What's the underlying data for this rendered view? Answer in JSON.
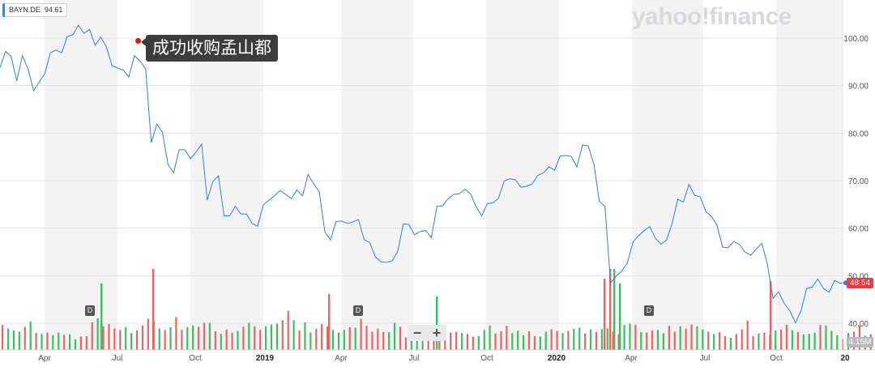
{
  "ticker": {
    "symbol": "BAYN.DE",
    "value": "94.61"
  },
  "watermark": "yahoo!finance",
  "annotation": {
    "text": "成功收购孟山都"
  },
  "last_price_label": "48.54",
  "volume_label": "4.15M",
  "dividend_label": "D",
  "zoom": {
    "minus": "−",
    "plus": "+"
  },
  "colors": {
    "line": "#2e7fde",
    "up": "#37c160",
    "down": "#f06262",
    "price_tag": "#ff333a",
    "shade": "#f3f3f3"
  },
  "chart_data": {
    "type": "line",
    "series": [
      {
        "values": [
          93.8,
          97.2,
          96.1,
          91.0,
          96.3,
          93.5,
          88.9,
          90.8,
          92.5,
          96.9,
          97.5,
          96.9,
          100.3,
          100.7,
          102.7,
          101.0,
          101.8,
          98.5,
          100.2,
          98.1,
          94.2,
          93.7,
          93.3,
          91.8,
          96.3,
          95.2,
          93.5,
          78.0,
          81.9,
          80.2,
          73.4,
          71.7,
          76.5,
          76.5,
          74.6,
          76.0,
          77.7,
          65.9,
          69.8,
          71.0,
          62.6,
          62.6,
          64.6,
          63.0,
          63.0,
          61.0,
          60.4,
          64.9,
          65.9,
          66.8,
          67.9,
          67.1,
          66.2,
          68.0,
          66.8,
          71.3,
          69.3,
          67.6,
          59.2,
          57.5,
          61.4,
          61.5,
          61.0,
          61.3,
          61.8,
          57.6,
          57.0,
          54.0,
          52.9,
          52.8,
          53.1,
          55.1,
          60.9,
          60.8,
          58.6,
          59.3,
          59.5,
          58.0,
          64.6,
          64.7,
          66.2,
          67.1,
          67.2,
          68.2,
          67.2,
          64.5,
          62.6,
          65.2,
          65.3,
          66.3,
          69.9,
          70.4,
          70.2,
          68.6,
          68.8,
          69.3,
          71.1,
          71.6,
          72.9,
          72.2,
          75.2,
          75.3,
          75.1,
          72.9,
          77.5,
          77.3,
          73.6,
          65.6,
          64.6,
          48.5,
          49.9,
          51.0,
          52.7,
          57.1,
          58.4,
          59.5,
          60.3,
          57.9,
          56.6,
          57.5,
          61.1,
          66.1,
          65.5,
          69.2,
          66.9,
          66.6,
          63.5,
          62.5,
          60.6,
          56.0,
          55.9,
          57.2,
          56.6,
          55.0,
          54.3,
          55.6,
          56.8,
          52.4,
          45.2,
          46.6,
          44.2,
          42.6,
          40.1,
          42.6,
          47.3,
          47.6,
          49.3,
          47.3,
          46.5,
          49.0,
          48.4,
          48.5
        ]
      },
      {
        "name": "Volume",
        "volume_values": [
          0.56,
          0.48,
          0.44,
          0.41,
          0.52,
          0.64,
          0.38,
          0.36,
          0.39,
          0.33,
          0.39,
          0.34,
          0.35,
          0.24,
          0.3,
          0.31,
          0.62,
          0.71,
          0.53,
          0.58,
          0.48,
          0.45,
          0.51,
          0.38,
          0.44,
          0.55,
          0.7,
          0.65,
          0.48,
          0.45,
          0.51,
          0.74,
          0.45,
          0.51,
          0.55,
          0.52,
          0.61,
          0.61,
          0.42,
          0.36,
          0.46,
          0.39,
          0.43,
          0.52,
          0.61,
          0.53,
          0.45,
          0.53,
          0.57,
          0.59,
          0.67,
          0.88,
          0.67,
          0.44,
          0.62,
          0.39,
          0.47,
          0.58,
          0.53,
          0.45,
          0.39,
          0.45,
          0.51,
          0.5,
          0.7,
          0.54,
          0.41,
          0.48,
          0.4,
          0.4,
          0.61,
          0.52,
          0.28,
          0.41,
          0.4,
          0.41,
          0.46,
          0.29,
          0.45,
          0.5,
          0.39,
          0.41,
          0.38,
          0.36,
          0.3,
          0.31,
          0.45,
          0.55,
          0.37,
          0.42,
          0.54,
          0.38,
          0.43,
          0.33,
          0.42,
          0.31,
          0.3,
          0.41,
          0.46,
          0.43,
          0.38,
          0.43,
          0.48,
          0.5,
          0.37,
          0.46,
          0.4,
          0.47,
          0.49,
          0.41,
          0.35,
          0.56,
          0.59,
          0.57,
          0.4,
          0.39,
          0.44,
          0.45,
          0.37,
          0.54,
          0.41,
          0.53,
          0.48,
          0.57,
          0.53,
          0.46,
          0.41,
          0.36,
          0.4,
          0.31,
          0.27,
          0.36,
          0.46,
          0.66,
          0.31,
          0.37,
          0.39,
          0.34,
          0.44,
          0.46,
          0.56,
          0.44,
          0.4,
          0.35,
          0.36,
          0.39,
          0.56,
          0.55,
          0.43,
          0.33,
          0.25,
          0.38,
          0.41,
          0.55,
          0.32,
          0.35,
          0.46,
          0.31,
          0.25
        ]
      }
    ],
    "volume_up": [
      false,
      true,
      true,
      true,
      false,
      true,
      false,
      true,
      false,
      true,
      true,
      false,
      true,
      true,
      false,
      false,
      false,
      true,
      false,
      false,
      false,
      false,
      true,
      true,
      false,
      false,
      false,
      false,
      true,
      false,
      true,
      false,
      false,
      true,
      true,
      false,
      false,
      true,
      false,
      true,
      false,
      false,
      true,
      false,
      true,
      false,
      false,
      true,
      true,
      true,
      false,
      false,
      true,
      false,
      true,
      true,
      false,
      false,
      false,
      true,
      true,
      true,
      false,
      true,
      false,
      false,
      false,
      false,
      false,
      true,
      true,
      false,
      false,
      true,
      true,
      true,
      false,
      false,
      false,
      false,
      false,
      false,
      true,
      false,
      false,
      true,
      true,
      true,
      false,
      false,
      false,
      true,
      true,
      true,
      false,
      false,
      true,
      true,
      false,
      false,
      true,
      false,
      true,
      true,
      false,
      true,
      false,
      true,
      true,
      false,
      false,
      true,
      true,
      false,
      true,
      false,
      false,
      true,
      true,
      false,
      false,
      true,
      false,
      false,
      true,
      true,
      false,
      true,
      false,
      false,
      true,
      false,
      false,
      false,
      false,
      true,
      false,
      false,
      true,
      false,
      false,
      true,
      false,
      true,
      true,
      true,
      false,
      true,
      true,
      true,
      false,
      true,
      false,
      false,
      true,
      false,
      false
    ],
    "big_bars": [
      {
        "x": 188,
        "v": 1.0,
        "up": false
      },
      {
        "x": 124,
        "v": 0.82,
        "up": true
      },
      {
        "x": 405,
        "v": 0.69,
        "up": false
      },
      {
        "x": 538,
        "v": 0.66,
        "up": true
      },
      {
        "x": 745,
        "v": 0.88,
        "up": false
      },
      {
        "x": 752,
        "v": 1.0,
        "up": false
      },
      {
        "x": 757,
        "v": 1.0,
        "up": true
      },
      {
        "x": 764,
        "v": 0.82,
        "up": true
      },
      {
        "x": 950,
        "v": 0.85,
        "up": false
      }
    ],
    "x_ticks": [
      "Apr",
      "Jul",
      "Oct",
      "2019",
      "Apr",
      "Jul",
      "Oct",
      "2020",
      "Apr",
      "Jul",
      "Oct",
      "20"
    ],
    "y_ticks": [
      "100.00",
      "90.00",
      "80.00",
      "70.00",
      "60.00",
      "50.00",
      "40.00"
    ],
    "ylim": [
      35.0,
      105.0
    ],
    "dividend_dates": [
      "2018-05",
      "2019-04",
      "2020-04"
    ]
  }
}
